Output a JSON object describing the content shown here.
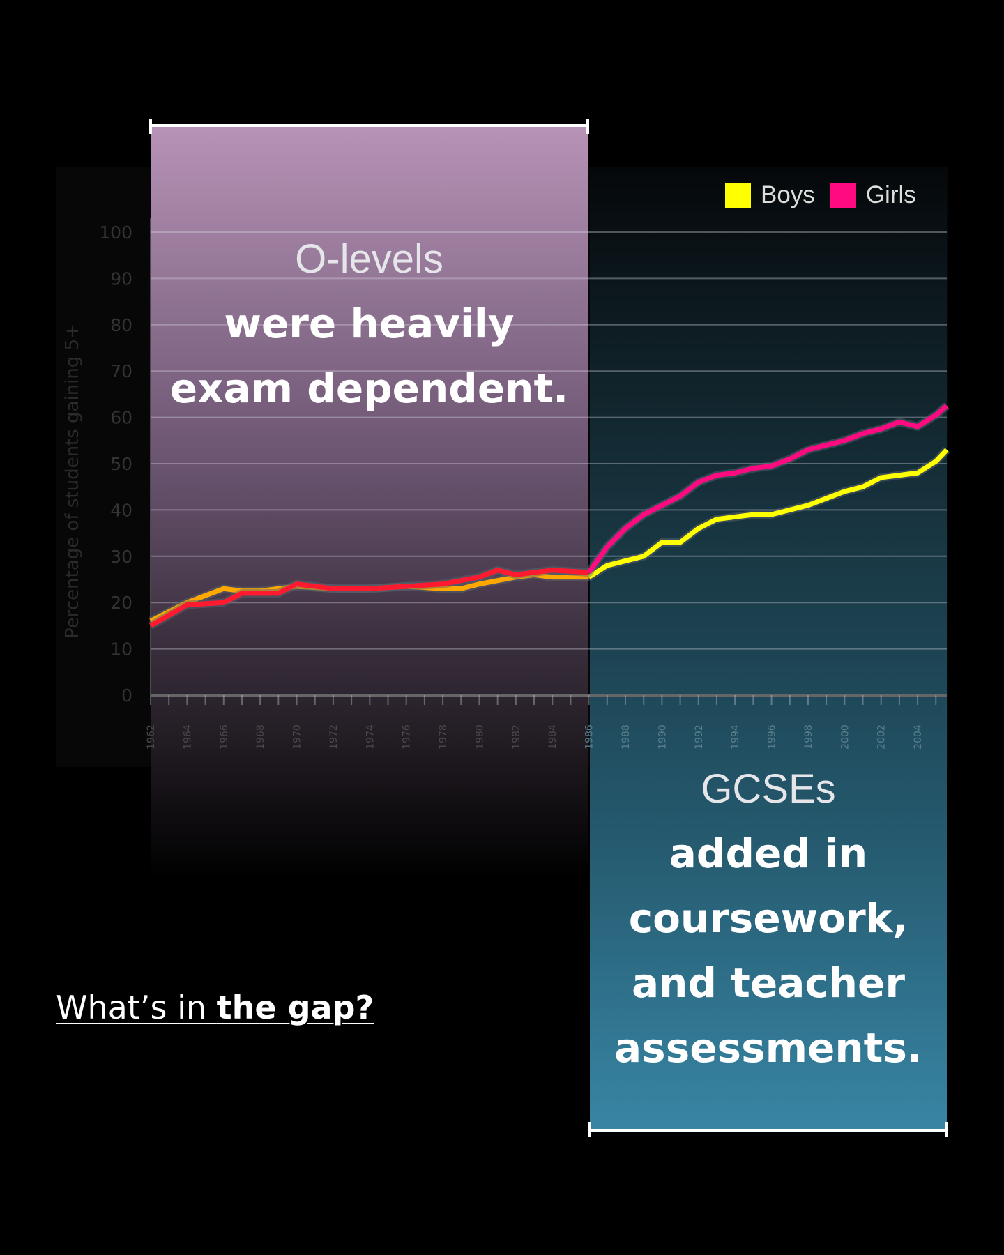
{
  "chart_data": {
    "type": "line",
    "title": "",
    "xlabel": "",
    "ylabel": "Percentage of students gaining 5+",
    "xlim": [
      1962,
      2005.6
    ],
    "ylim": [
      0,
      100
    ],
    "yticks": [
      "0",
      "10",
      "20",
      "30",
      "40",
      "50",
      "60",
      "70",
      "80",
      "90",
      "100"
    ],
    "xticks": [
      "1962",
      "1964",
      "1966",
      "1968",
      "1970",
      "1972",
      "1974",
      "1976",
      "1978",
      "1980",
      "1982",
      "1984",
      "1986",
      "1988",
      "1990",
      "1992",
      "1994",
      "1996",
      "1998",
      "2000",
      "2002",
      "2004"
    ],
    "grid": true,
    "legend_position": "top-right",
    "series": [
      {
        "name": "Boys",
        "color": "#ffff00",
        "x": [
          1962,
          1964,
          1966,
          1967,
          1968,
          1969,
          1970,
          1972,
          1974,
          1976,
          1978,
          1979,
          1980,
          1982,
          1983,
          1984,
          1985,
          1986,
          1987,
          1988,
          1989,
          1990,
          1991,
          1992,
          1993,
          1994,
          1995,
          1996,
          1997,
          1998,
          1999,
          2000,
          2001,
          2002,
          2003,
          2004,
          2005,
          2005.6
        ],
        "y": [
          16,
          20,
          23,
          22.5,
          22.5,
          23,
          23.5,
          23,
          23,
          23.5,
          23,
          23,
          24,
          25.5,
          26,
          25.5,
          25.5,
          25.5,
          28,
          29,
          30,
          33,
          33,
          36,
          38,
          38.5,
          39,
          39,
          40,
          41,
          42.5,
          44,
          45,
          47,
          47.5,
          48,
          50.5,
          53
        ]
      },
      {
        "name": "Girls",
        "color": "#ff0a80",
        "x": [
          1962,
          1964,
          1966,
          1967,
          1969,
          1970,
          1972,
          1974,
          1976,
          1978,
          1980,
          1981,
          1982,
          1984,
          1986,
          1987,
          1988,
          1989,
          1990,
          1991,
          1992,
          1993,
          1994,
          1995,
          1996,
          1997,
          1998,
          1999,
          2000,
          2001,
          2002,
          2003,
          2004,
          2005,
          2005.6
        ],
        "y": [
          15,
          19.5,
          20,
          22,
          22,
          24,
          23,
          23,
          23.5,
          24,
          25.5,
          27,
          26,
          27,
          26.5,
          32,
          36,
          39,
          41,
          43,
          46,
          47.5,
          48,
          49,
          49.5,
          51,
          53,
          54,
          55,
          56.5,
          57.5,
          59,
          58,
          60.5,
          62.5
        ]
      }
    ]
  },
  "annotations": {
    "olevels": {
      "line1": "O-levels",
      "line2": "were heavily",
      "line3": "exam dependent."
    },
    "gcse": {
      "line1": "GCSEs",
      "line2": "added in",
      "line3": "coursework,",
      "line4": "and teacher",
      "line5": "assessments."
    }
  },
  "link": {
    "part1": "What’s in ",
    "part2": "the gap?"
  }
}
